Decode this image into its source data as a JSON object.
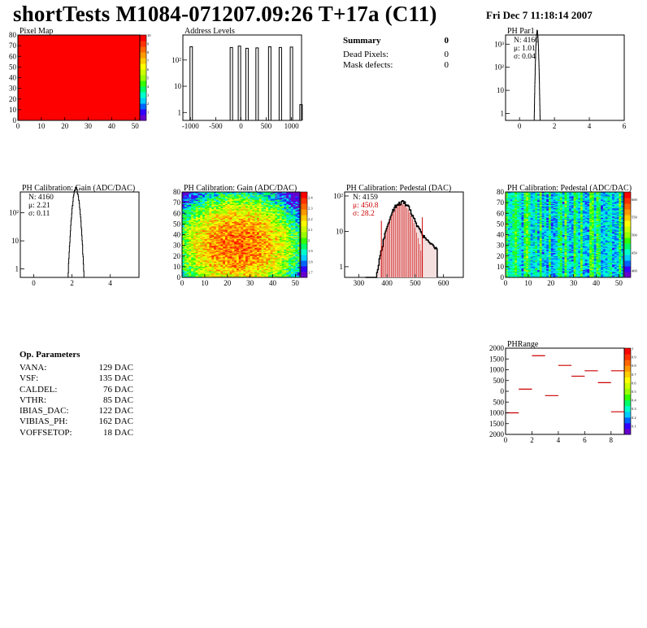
{
  "header": {
    "title": "shortTests M1084-071207.09:26 T+17a (C11)",
    "date": "Fri Dec  7 11:18:14 2007"
  },
  "summary": {
    "title": "Summary",
    "title_value": "0",
    "rows": [
      {
        "label": "Dead Pixels:",
        "value": "0"
      },
      {
        "label": "Mask defects:",
        "value": "0"
      }
    ]
  },
  "op_params": {
    "title": "Op. Parameters",
    "rows": [
      {
        "label": "VANA:",
        "value": "129 DAC"
      },
      {
        "label": "VSF:",
        "value": "135 DAC"
      },
      {
        "label": "CALDEL:",
        "value": "76 DAC"
      },
      {
        "label": "VTHR:",
        "value": "85 DAC"
      },
      {
        "label": "IBIAS_DAC:",
        "value": "122 DAC"
      },
      {
        "label": "VIBIAS_PH:",
        "value": "162 DAC"
      },
      {
        "label": "VOFFSETOP:",
        "value": "18 DAC"
      }
    ]
  },
  "chart_data": [
    {
      "id": "pixel-map",
      "type": "heatmap",
      "title": "Pixel Map",
      "xlim": [
        0,
        52
      ],
      "ylim": [
        0,
        80
      ],
      "xticks": [
        "0",
        "10",
        "20",
        "30",
        "40",
        "50"
      ],
      "yticks": [
        "0",
        "10",
        "20",
        "30",
        "40",
        "50",
        "60",
        "70",
        "80"
      ],
      "uniform_value": 10,
      "fill_color": "#ff0000",
      "colorbar_ticks": [
        "1",
        "2",
        "3",
        "4",
        "5",
        "6",
        "7",
        "8",
        "9",
        "10"
      ],
      "colorbar_range": [
        0,
        10
      ]
    },
    {
      "id": "address-levels",
      "type": "bar",
      "title": "Address Levels",
      "xlim": [
        -1150,
        1200
      ],
      "log_y": true,
      "xticks": [
        "-1000",
        "-500",
        "0",
        "500",
        "1000"
      ],
      "yticks": [
        "1",
        "10",
        "10²"
      ],
      "peaks": [
        {
          "x": -985,
          "height": 320
        },
        {
          "x": -190,
          "height": 300
        },
        {
          "x": -30,
          "height": 340
        },
        {
          "x": 120,
          "height": 280
        },
        {
          "x": 320,
          "height": 290
        },
        {
          "x": 570,
          "height": 320
        },
        {
          "x": 780,
          "height": 300
        },
        {
          "x": 1000,
          "height": 310
        },
        {
          "x": 1190,
          "height": 2
        }
      ]
    },
    {
      "id": "ph-par1",
      "type": "bar",
      "title": "PH Par1",
      "xlim": [
        -0.8,
        6
      ],
      "log_y": true,
      "xticks": [
        "0",
        "2",
        "4",
        "6"
      ],
      "yticks": [
        "1",
        "10",
        "10²",
        "10³"
      ],
      "stats": [
        "N: 4160",
        "μ: 1.01",
        "σ: 0.04"
      ],
      "peak": {
        "mean": 1.01,
        "sigma": 0.04,
        "height": 4160
      }
    },
    {
      "id": "ph-gain-hist",
      "type": "bar",
      "title": "PH Calibration: Gain (ADC/DAC)",
      "xlim": [
        -0.7,
        5.5
      ],
      "log_y": true,
      "xticks": [
        "0",
        "2",
        "4"
      ],
      "yticks": [
        "1",
        "10",
        "10²"
      ],
      "stats": [
        "N: 4160",
        "μ: 2.21",
        "σ: 0.11"
      ],
      "peak": {
        "mean": 2.21,
        "sigma": 0.11,
        "height": 800
      }
    },
    {
      "id": "ph-gain-map",
      "type": "heatmap",
      "title": "PH Calibration: Gain (ADC/DAC)",
      "xlim": [
        0,
        52
      ],
      "ylim": [
        0,
        80
      ],
      "xticks": [
        "0",
        "10",
        "20",
        "30",
        "40",
        "50"
      ],
      "yticks": [
        "0",
        "10",
        "20",
        "30",
        "40",
        "50",
        "60",
        "70",
        "80"
      ],
      "colorbar_ticks": [
        "1.7",
        "1.8",
        "1.9",
        "2",
        "2.1",
        "2.2",
        "2.3",
        "2.4"
      ],
      "colorbar_range": [
        1.65,
        2.45
      ]
    },
    {
      "id": "ph-pedestal-hist",
      "type": "bar",
      "title": "PH Calibration: Pedestal (DAC)",
      "xlim": [
        250,
        670
      ],
      "log_y": true,
      "xticks": [
        "300",
        "400",
        "500",
        "600"
      ],
      "yticks": [
        "1",
        "10",
        "10²"
      ],
      "stats": [
        "N: 4159",
        "μ: 450.8",
        "σ: 28.2"
      ],
      "stats_colors": [
        "#000000",
        "#cc0000",
        "#cc0000"
      ],
      "peak": {
        "mean": 450.8,
        "sigma": 28.2,
        "height": 65
      },
      "fit_range": [
        380,
        525
      ]
    },
    {
      "id": "ph-pedestal-map",
      "type": "heatmap",
      "title": "PH Calibration: Pedestal (ADC/DAC)",
      "xlim": [
        0,
        52
      ],
      "ylim": [
        0,
        80
      ],
      "xticks": [
        "0",
        "10",
        "20",
        "30",
        "40",
        "50"
      ],
      "yticks": [
        "0",
        "10",
        "20",
        "30",
        "40",
        "50",
        "60",
        "70",
        "80"
      ],
      "colorbar_ticks": [
        "400",
        "450",
        "500",
        "550",
        "600"
      ],
      "colorbar_range": [
        380,
        620
      ]
    },
    {
      "id": "ph-range",
      "type": "scatter",
      "title": "PHRange",
      "xlim": [
        0,
        9
      ],
      "ylim": [
        -2000,
        2000
      ],
      "ytick_values": [
        2000,
        1500,
        1000,
        500,
        0,
        -500,
        -1000,
        -1500,
        -2000
      ],
      "ytick_labels": [
        "2000",
        "1500",
        "1000",
        "500",
        "0",
        "500",
        "1000",
        "1500",
        "2000"
      ],
      "xticks": [
        "0",
        "2",
        "4",
        "6",
        "8"
      ],
      "points": [
        {
          "x": 0.5,
          "y": -1000
        },
        {
          "x": 1.5,
          "y": 100
        },
        {
          "x": 2.5,
          "y": 1650
        },
        {
          "x": 3.5,
          "y": -200
        },
        {
          "x": 4.5,
          "y": 1200
        },
        {
          "x": 5.5,
          "y": 700
        },
        {
          "x": 6.5,
          "y": 950
        },
        {
          "x": 7.5,
          "y": 400
        },
        {
          "x": 8.5,
          "y": 950
        },
        {
          "x": 8.5,
          "y": -950
        }
      ],
      "colorbar_ticks": [
        "0.1",
        "0.2",
        "0.3",
        "0.4",
        "0.5",
        "0.6",
        "0.7",
        "0.8",
        "0.9",
        "1"
      ],
      "colorbar_range": [
        0,
        1
      ]
    }
  ]
}
